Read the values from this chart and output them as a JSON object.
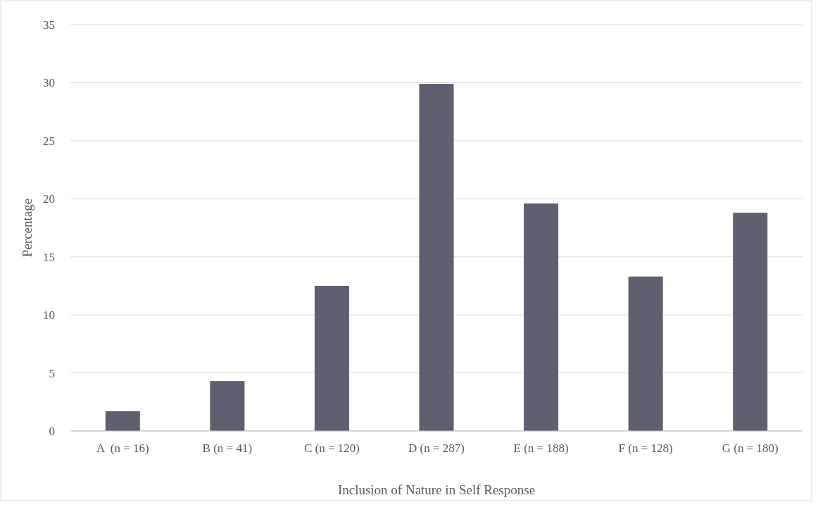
{
  "chart_data": {
    "type": "bar",
    "xlabel": "Inclusion of Nature in Self Response",
    "ylabel": "Percentage",
    "categories": [
      "A  (n = 16)",
      "B (n = 41)",
      "C (n = 120)",
      "D (n = 287)",
      "E (n = 188)",
      "F (n = 128)",
      "G (n = 180)"
    ],
    "values": [
      1.7,
      4.3,
      12.5,
      29.9,
      19.6,
      13.3,
      18.8
    ],
    "color": "#5e6070",
    "ylim": [
      0,
      35
    ],
    "yticks": [
      0,
      5,
      10,
      15,
      20,
      25,
      30,
      35
    ],
    "grid": "y"
  }
}
